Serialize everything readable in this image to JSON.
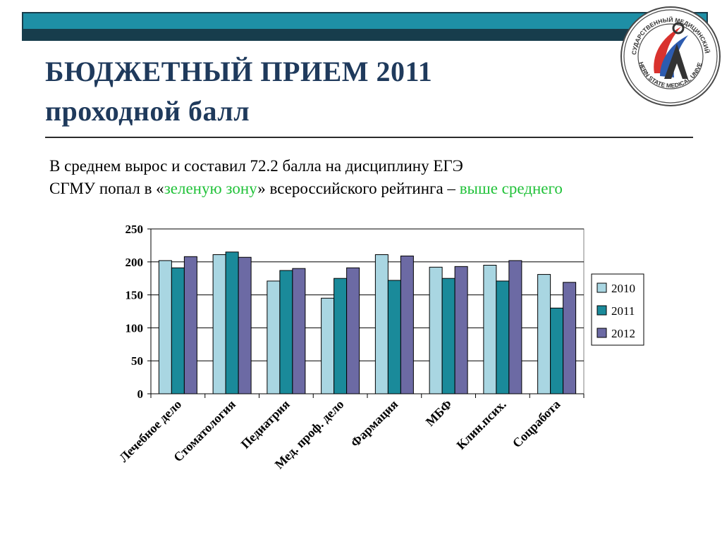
{
  "slide": {
    "title_line1": "БЮДЖЕТНЫЙ ПРИЕМ 2011",
    "title_line2": "проходной балл",
    "summary_line1": "В среднем вырос и составил  72.2 балла на дисциплину ЕГЭ",
    "summary_line2_prefix": "СГМУ попал в «",
    "summary_line2_green1": "зеленую зону",
    "summary_line2_middle": "» всероссийского рейтинга – ",
    "summary_line2_green2": "выше среднего",
    "logo": {
      "icon": "university-seal-icon",
      "text_top": "СЕВЕРНЫЙ ГОСУДАРСТВЕННЫЙ МЕДИЦИНСКИЙ УНИВЕРСИТЕТ",
      "text_bottom": "NORTHERN STATE MEDICAL UNIVERSITY"
    },
    "colors": {
      "band_dark": "#173d4c",
      "band_teal": "#1e8fa6",
      "title": "#1f3a5c",
      "green_text": "#22c23a"
    }
  },
  "chart_data": {
    "type": "bar",
    "categories": [
      "Лечебное дело",
      "Стоматология",
      "Педиатрия",
      "Мед. проф. дело",
      "Фармация",
      "МБФ",
      "Клин.псих.",
      "Соцработа"
    ],
    "series": [
      {
        "name": "2010",
        "color": "#a9d6e2",
        "values": [
          202,
          211,
          171,
          145,
          211,
          192,
          195,
          181
        ]
      },
      {
        "name": "2011",
        "color": "#1a8a9a",
        "values": [
          191,
          215,
          187,
          175,
          172,
          175,
          171,
          130
        ]
      },
      {
        "name": "2012",
        "color": "#6c6aa4",
        "values": [
          208,
          207,
          190,
          191,
          209,
          193,
          202,
          169
        ]
      }
    ],
    "ylim": [
      0,
      250
    ],
    "yticks": [
      0,
      50,
      100,
      150,
      200,
      250
    ],
    "grid": true,
    "legend": "right"
  }
}
